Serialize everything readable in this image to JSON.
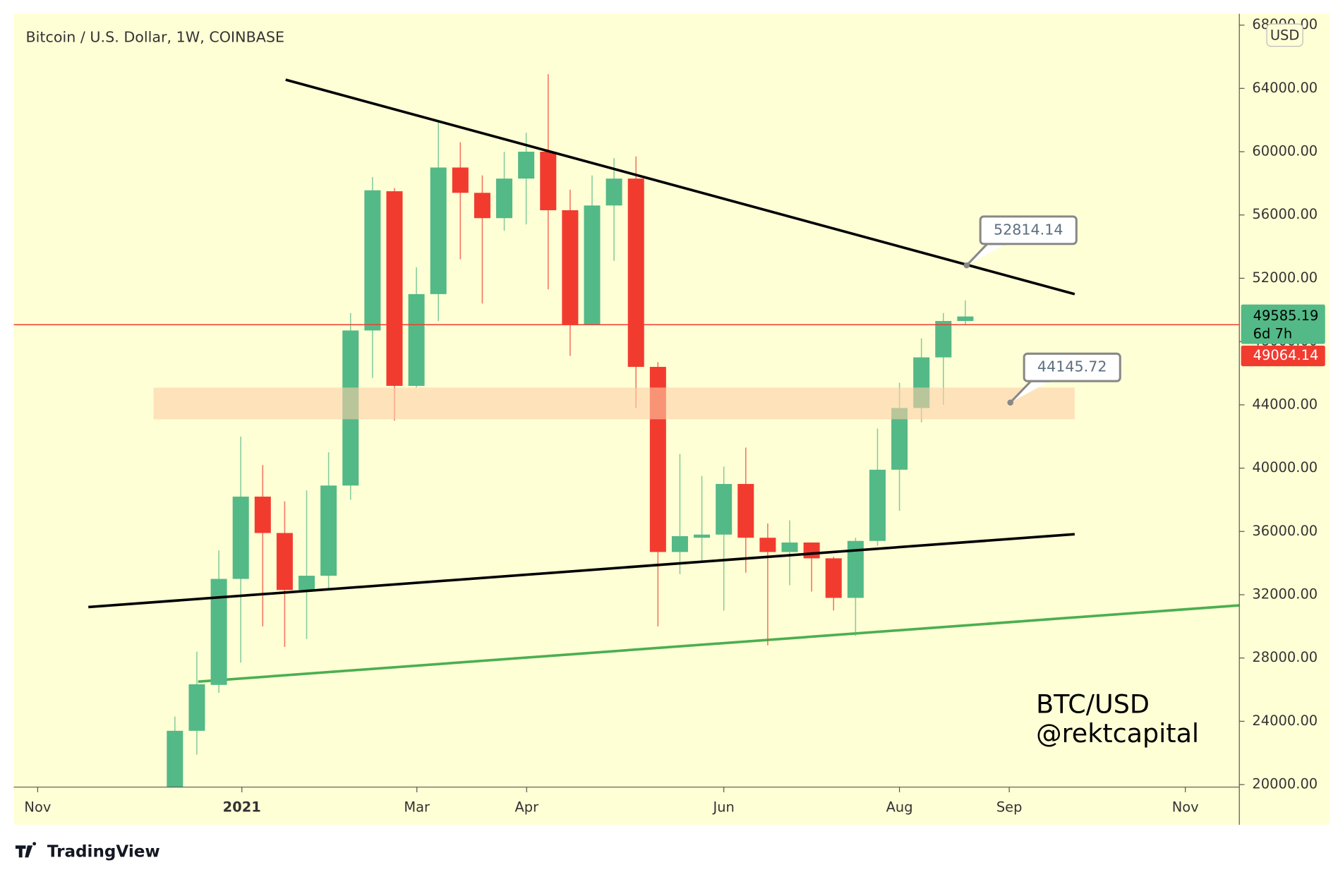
{
  "chart_data": {
    "type": "candlestick",
    "title": "Bitcoin / U.S. Dollar, 1W, COINBASE",
    "y_axis_label": "USD",
    "brand": "TradingView",
    "watermark": [
      "BTC/USD",
      "@rektcapital"
    ],
    "up_color": "#53b987",
    "down_color": "#f23b2f",
    "categories": [
      null,
      null,
      null,
      null,
      null,
      null,
      null,
      null,
      null,
      null,
      null,
      null,
      null,
      null,
      null,
      null,
      null,
      null,
      null,
      null,
      null,
      null,
      null,
      null,
      null,
      null,
      null,
      null,
      null,
      null,
      null,
      null,
      null,
      null,
      null,
      null,
      null
    ],
    "open": [
      19800,
      23400,
      26300,
      33000,
      38200,
      35900,
      32300,
      33200,
      38900,
      48700,
      57500,
      45200,
      51000,
      59000,
      57400,
      55800,
      58300,
      60000,
      56300,
      49100,
      56600,
      58300,
      46400,
      34700,
      35600,
      35800,
      39000,
      35600,
      34700,
      35300,
      34300,
      31800,
      35400,
      39900,
      43800,
      47000,
      49300
    ],
    "high": [
      24300,
      28400,
      34800,
      42000,
      40200,
      37900,
      38600,
      41000,
      49800,
      58400,
      57700,
      52700,
      61900,
      60600,
      58500,
      60000,
      61200,
      64900,
      57600,
      58500,
      59600,
      59700,
      46700,
      40900,
      39500,
      40100,
      41300,
      36500,
      36700,
      34900,
      34400,
      35600,
      42500,
      45400,
      48200,
      49800,
      50600
    ],
    "low": [
      19500,
      21900,
      25800,
      27700,
      30000,
      28700,
      29200,
      32400,
      38000,
      45700,
      43000,
      45100,
      49300,
      53200,
      50400,
      55000,
      55400,
      51300,
      47100,
      49300,
      53100,
      43800,
      30000,
      33300,
      34100,
      31000,
      33400,
      28800,
      32600,
      32200,
      31000,
      29400,
      35100,
      37300,
      42900,
      44000,
      49100
    ],
    "close": [
      23400,
      26340,
      33000,
      38200,
      35900,
      32300,
      33200,
      38900,
      48700,
      57560,
      45200,
      51000,
      59000,
      57400,
      55800,
      58300,
      60000,
      56300,
      49100,
      56600,
      58300,
      46400,
      34700,
      35700,
      35800,
      39000,
      35600,
      34700,
      35300,
      34300,
      31800,
      35400,
      39900,
      43800,
      47000,
      49300,
      49585.19
    ],
    "xlim": [
      -7.34,
      48.48
    ],
    "xticks": [
      {
        "value": -6.25,
        "label": "Nov"
      },
      {
        "value": 3.05,
        "label": "2021"
      },
      {
        "value": 11.02,
        "label": "Mar"
      },
      {
        "value": 16.02,
        "label": "Apr"
      },
      {
        "value": 25.0,
        "label": "Jun"
      },
      {
        "value": 33.0,
        "label": "Aug"
      },
      {
        "value": 38.0,
        "label": "Sep"
      },
      {
        "value": 46.02,
        "label": "Nov"
      }
    ],
    "ylim": [
      19840,
      68720
    ],
    "yticks": [
      {
        "value": 20000,
        "label": "20000.00"
      },
      {
        "value": 24000,
        "label": "24000.00"
      },
      {
        "value": 28000,
        "label": "28000.00"
      },
      {
        "value": 32000,
        "label": "32000.00"
      },
      {
        "value": 36000,
        "label": "36000.00"
      },
      {
        "value": 40000,
        "label": "40000.00"
      },
      {
        "value": 44000,
        "label": "44000.00"
      },
      {
        "value": 48000,
        "label": "48000.00"
      },
      {
        "value": 52000,
        "label": "52000.00"
      },
      {
        "value": 56000,
        "label": "56000.00"
      },
      {
        "value": 60000,
        "label": "60000.00"
      },
      {
        "value": 64000,
        "label": "64000.00"
      },
      {
        "value": 68000,
        "label": "68000.00"
      }
    ],
    "price_labels": [
      {
        "value": 49585.19,
        "color": "#53b987",
        "countdown": "6d 7h"
      },
      {
        "value": 49064.14,
        "color": "#f23b2f"
      }
    ],
    "callouts": [
      52814.14,
      44145.72
    ]
  }
}
